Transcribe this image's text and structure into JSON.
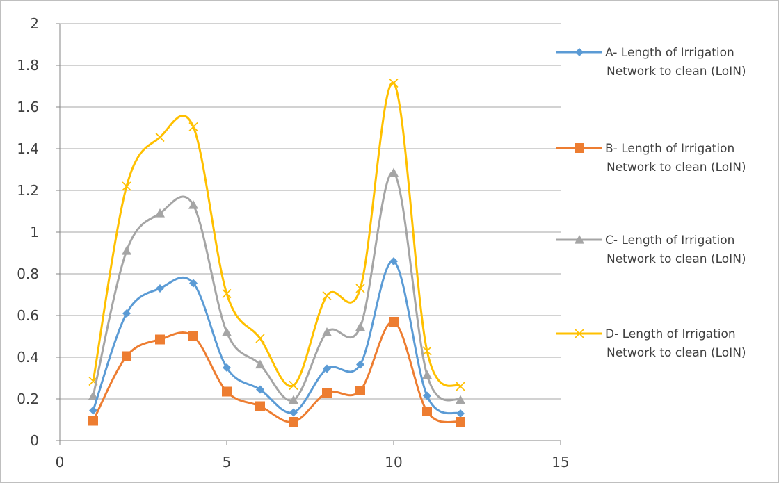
{
  "chart_data": {
    "type": "scatter",
    "title": "",
    "xlabel": "",
    "ylabel": "",
    "xlim": [
      0,
      15
    ],
    "ylim": [
      0,
      2
    ],
    "x_ticks": [
      0,
      5,
      10,
      15
    ],
    "y_ticks": [
      0,
      0.2,
      0.4,
      0.6,
      0.8,
      1,
      1.2,
      1.4,
      1.6,
      1.8,
      2
    ],
    "grid": "horizontal",
    "legend_position": "right",
    "smooth_lines": true,
    "x": [
      1,
      2,
      3,
      4,
      5,
      6,
      7,
      8,
      9,
      10,
      11,
      12
    ],
    "series": [
      {
        "name": "A- Length of Irrigation Network to clean (LoIN)",
        "legend_lines": [
          "A- Length of Irrigation",
          "Network to clean (LoIN)"
        ],
        "color": "#5b9bd5",
        "marker": "diamond",
        "values": [
          0.145,
          0.61,
          0.73,
          0.755,
          0.35,
          0.245,
          0.135,
          0.345,
          0.365,
          0.86,
          0.215,
          0.13
        ]
      },
      {
        "name": "B- Length of Irrigation Network to clean (LoIN)",
        "legend_lines": [
          "B- Length of Irrigation",
          "Network to clean (LoIN)"
        ],
        "color": "#ed7d31",
        "marker": "square",
        "values": [
          0.095,
          0.405,
          0.485,
          0.5,
          0.235,
          0.165,
          0.09,
          0.23,
          0.24,
          0.57,
          0.14,
          0.09
        ]
      },
      {
        "name": "C- Length of Irrigation Network to clean (LoIN)",
        "legend_lines": [
          "C- Length of Irrigation",
          "Network to clean (LoIN)"
        ],
        "color": "#a5a5a5",
        "marker": "triangle",
        "values": [
          0.215,
          0.91,
          1.09,
          1.13,
          0.52,
          0.365,
          0.195,
          0.52,
          0.545,
          1.285,
          0.315,
          0.195
        ]
      },
      {
        "name": "D- Length of Irrigation Network to clean (LoIN)",
        "legend_lines": [
          "D- Length of Irrigation",
          "Network to clean (LoIN)"
        ],
        "color": "#ffc000",
        "marker": "x",
        "values": [
          0.285,
          1.22,
          1.455,
          1.505,
          0.705,
          0.49,
          0.265,
          0.695,
          0.73,
          1.715,
          0.43,
          0.26
        ]
      }
    ]
  }
}
